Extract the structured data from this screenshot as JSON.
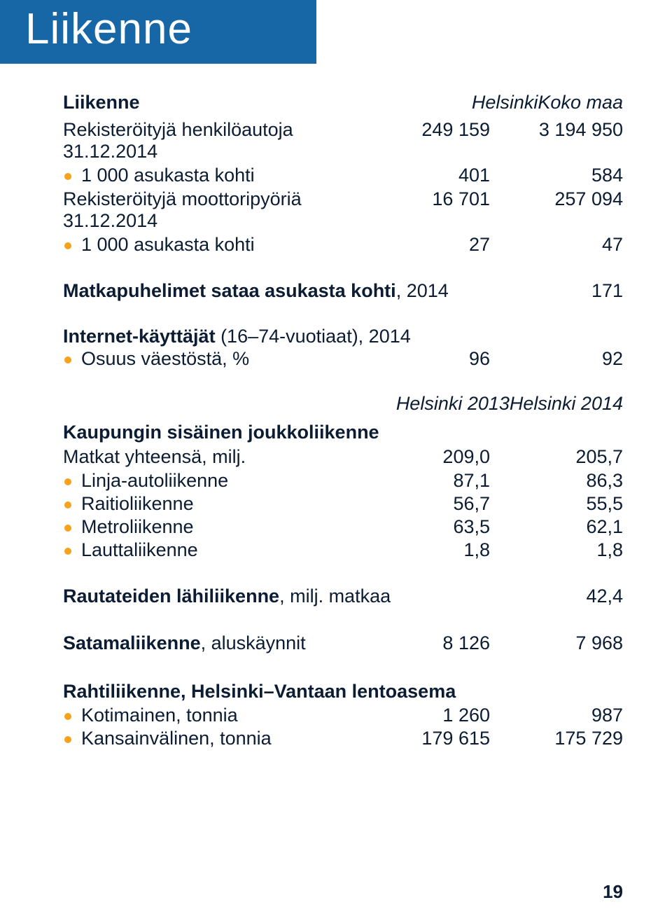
{
  "page_title": "Liikenne",
  "colors": {
    "band_bg": "#1766a6",
    "band_text": "#ffffff",
    "body_text": "#0b1c33",
    "bullet": "#f6a21b",
    "page_bg": "#ffffff"
  },
  "liikenne": {
    "header": {
      "label": "Liikenne",
      "col1": "Helsinki",
      "col2": "Koko maa"
    },
    "rows": [
      {
        "label": "Rekisteröityjä henkilöautoja 31.12.2014",
        "c1": "249 159",
        "c2": "3 194 950",
        "bold": false,
        "bullet": false
      },
      {
        "label": "1 000 asukasta kohti",
        "c1": "401",
        "c2": "584",
        "bold": false,
        "bullet": true
      },
      {
        "label": "Rekisteröityjä moottoripyöriä 31.12.2014",
        "c1": "16 701",
        "c2": "257 094",
        "bold": false,
        "bullet": false
      },
      {
        "label": "1 000 asukasta kohti",
        "c1": "27",
        "c2": "47",
        "bold": false,
        "bullet": true
      }
    ]
  },
  "matkapuhelimet": {
    "label": "Matkapuhelimet sataa asukasta kohti",
    "label_tail": ", 2014",
    "value": "171"
  },
  "internet": {
    "title": "Internet-käyttäjät",
    "title_tail": " (16–74-vuotiaat), 2014",
    "row": {
      "label": "Osuus väestöstä, %",
      "c1": "96",
      "c2": "92"
    }
  },
  "joukkoliikenne": {
    "header": {
      "label": "Kaupungin sisäinen joukkoliikenne",
      "col1": "Helsinki 2013",
      "col2": "Helsinki 2014"
    },
    "total": {
      "label": "Matkat yhteensä, milj.",
      "c1": "209,0",
      "c2": "205,7"
    },
    "rows": [
      {
        "label": "Linja-autoliikenne",
        "c1": "87,1",
        "c2": "86,3"
      },
      {
        "label": "Raitioliikenne",
        "c1": "56,7",
        "c2": "55,5"
      },
      {
        "label": "Metroliikenne",
        "c1": "63,5",
        "c2": "62,1"
      },
      {
        "label": "Lauttaliikenne",
        "c1": "1,8",
        "c2": "1,8"
      }
    ]
  },
  "rautatie": {
    "label": "Rautateiden lähiliikenne",
    "label_tail": ", milj. matkaa",
    "value": "42,4"
  },
  "satama": {
    "label": "Satamaliikenne",
    "label_tail": ", aluskäynnit",
    "c1": "8 126",
    "c2": "7 968"
  },
  "rahti": {
    "title": "Rahtiliikenne, Helsinki–Vantaan lentoasema",
    "rows": [
      {
        "label": "Kotimainen, tonnia",
        "c1": "1 260",
        "c2": "987"
      },
      {
        "label": "Kansainvälinen, tonnia",
        "c1": "179 615",
        "c2": "175 729"
      }
    ]
  },
  "page_number": "19"
}
